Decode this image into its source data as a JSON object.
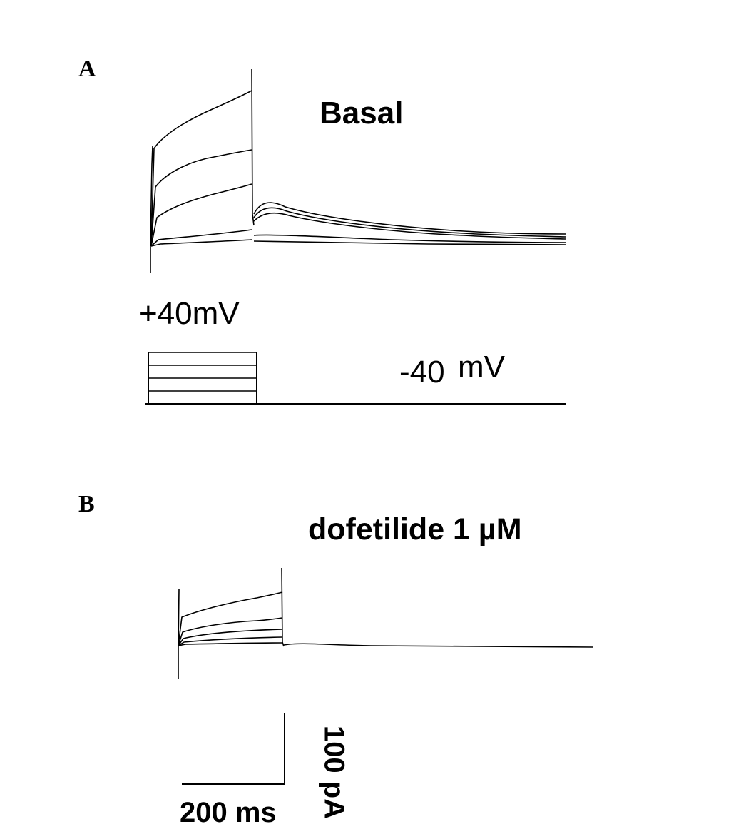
{
  "panels": [
    {
      "letter": "A",
      "condition": "Basal"
    },
    {
      "letter": "B",
      "condition": "dofetilide 1 µM"
    }
  ],
  "protocol": {
    "step_label": "+40mV",
    "holding_value": "-40",
    "holding_unit": "mV"
  },
  "scale_bar": {
    "current_label": "100 pA",
    "time_label": "200 ms"
  },
  "trace_color": "#000000"
}
